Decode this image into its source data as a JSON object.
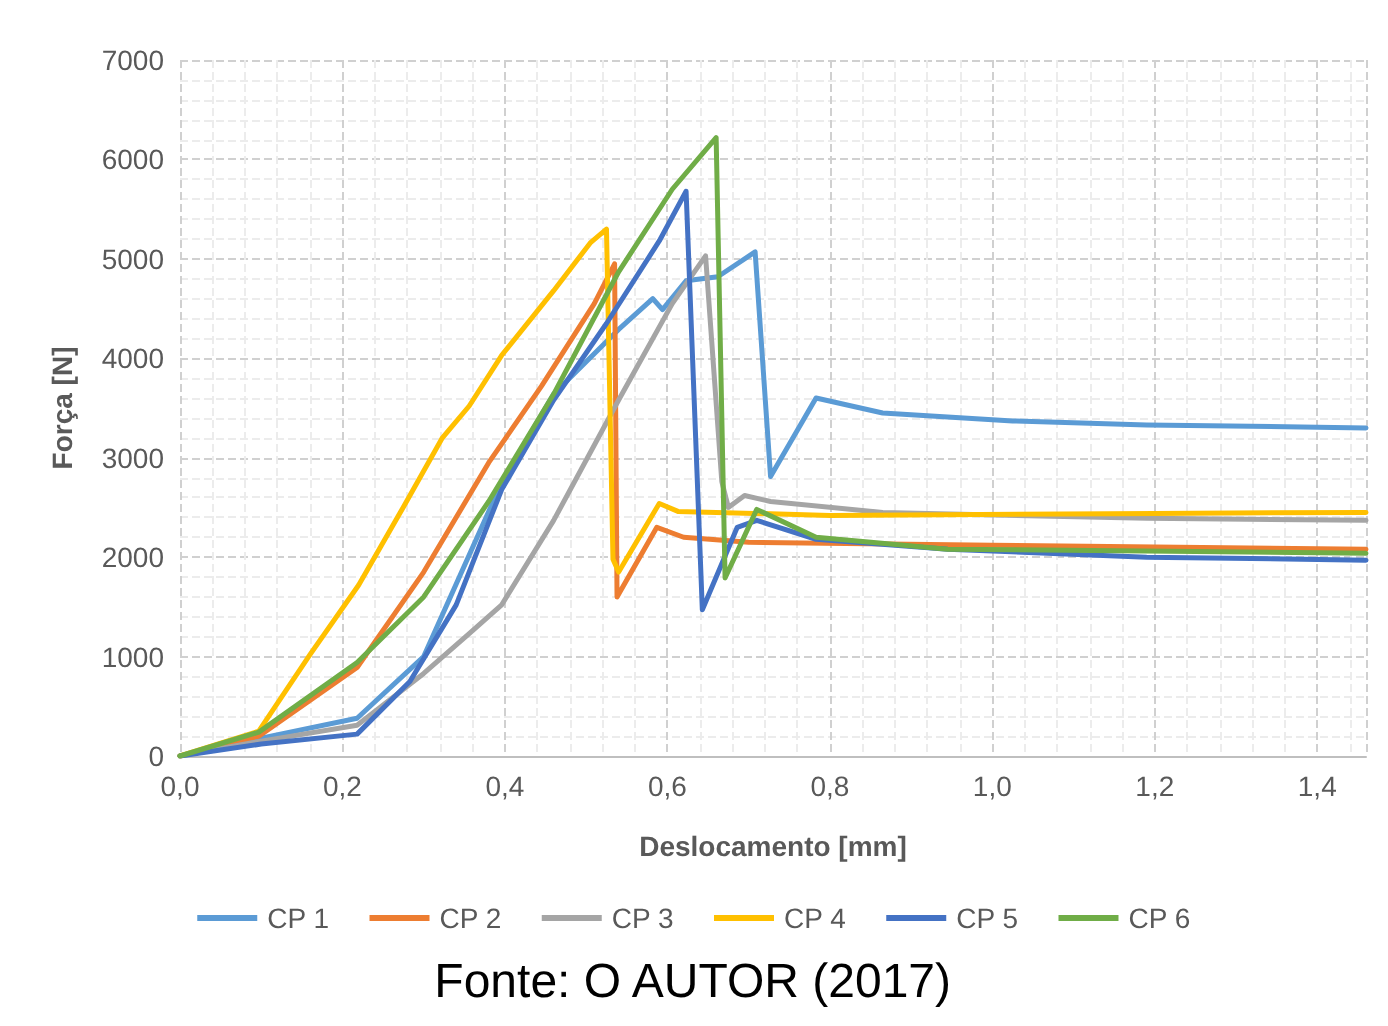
{
  "chart_data": {
    "type": "line",
    "xlabel": "Deslocamento [mm]",
    "ylabel": "Força [N]",
    "xlim": [
      0,
      1.46
    ],
    "xticks": [
      {
        "value": 0,
        "label": "0,0"
      },
      {
        "value": 0.2,
        "label": "0,2"
      },
      {
        "value": 0.4,
        "label": "0,4"
      },
      {
        "value": 0.6,
        "label": "0,6"
      },
      {
        "value": 0.8,
        "label": "0,8"
      },
      {
        "value": 1.0,
        "label": "1,0"
      },
      {
        "value": 1.2,
        "label": "1,2"
      },
      {
        "value": 1.4,
        "label": "1,4"
      }
    ],
    "ylim": [
      0,
      7000
    ],
    "yticks": [
      0,
      1000,
      2000,
      3000,
      4000,
      5000,
      6000,
      7000
    ],
    "grid": true,
    "legend": "bottom",
    "marker": "none",
    "line_style": "solid",
    "annotations": [
      "Fonte: O AUTOR (2017)"
    ],
    "series": [
      {
        "name": "CP 1",
        "color": "#5b9bd5",
        "x": [
          0,
          0.1,
          0.218,
          0.3,
          0.396,
          0.46,
          0.54,
          0.582,
          0.594,
          0.623,
          0.662,
          0.708,
          0.727,
          0.783,
          0.865,
          1.025,
          1.19,
          1.46
        ],
        "values": [
          0,
          180,
          380,
          1000,
          2750,
          3640,
          4290,
          4600,
          4490,
          4780,
          4820,
          5070,
          2810,
          3600,
          3450,
          3370,
          3330,
          3300
        ]
      },
      {
        "name": "CP 2",
        "color": "#ed7d31",
        "x": [
          0,
          0.097,
          0.218,
          0.3,
          0.38,
          0.445,
          0.51,
          0.535,
          0.538,
          0.587,
          0.62,
          0.7,
          1.0,
          1.46
        ],
        "values": [
          0,
          200,
          890,
          1850,
          2950,
          3720,
          4550,
          4950,
          1600,
          2300,
          2200,
          2150,
          2120,
          2080
        ]
      },
      {
        "name": "CP 3",
        "color": "#a5a5a5",
        "x": [
          0,
          0.1,
          0.218,
          0.3,
          0.356,
          0.396,
          0.46,
          0.54,
          0.606,
          0.647,
          0.667,
          0.675,
          0.695,
          0.727,
          0.865,
          1.19,
          1.46
        ],
        "values": [
          0,
          150,
          310,
          830,
          1230,
          1520,
          2370,
          3580,
          4550,
          5030,
          2760,
          2500,
          2620,
          2560,
          2450,
          2390,
          2370
        ]
      },
      {
        "name": "CP 4",
        "color": "#ffc000",
        "x": [
          0,
          0.097,
          0.16,
          0.22,
          0.274,
          0.323,
          0.356,
          0.396,
          0.46,
          0.505,
          0.525,
          0.533,
          0.54,
          0.59,
          0.613,
          0.8,
          1.2,
          1.46
        ],
        "values": [
          0,
          250,
          1020,
          1720,
          2490,
          3200,
          3520,
          4030,
          4680,
          5160,
          5300,
          1980,
          1850,
          2540,
          2460,
          2420,
          2440,
          2450
        ]
      },
      {
        "name": "CP 5",
        "color": "#4472c4",
        "x": [
          0,
          0.1,
          0.218,
          0.283,
          0.34,
          0.396,
          0.46,
          0.525,
          0.59,
          0.623,
          0.643,
          0.686,
          0.71,
          0.783,
          0.945,
          1.19,
          1.46
        ],
        "values": [
          0,
          120,
          220,
          750,
          1520,
          2680,
          3580,
          4350,
          5180,
          5680,
          1470,
          2300,
          2370,
          2180,
          2080,
          2000,
          1970
        ]
      },
      {
        "name": "CP 6",
        "color": "#70ad47",
        "x": [
          0,
          0.097,
          0.218,
          0.3,
          0.38,
          0.46,
          0.54,
          0.606,
          0.66,
          0.671,
          0.71,
          0.783,
          0.945,
          1.46
        ],
        "values": [
          0,
          240,
          940,
          1600,
          2560,
          3640,
          4870,
          5700,
          6220,
          1790,
          2480,
          2200,
          2080,
          2040
        ]
      }
    ]
  }
}
